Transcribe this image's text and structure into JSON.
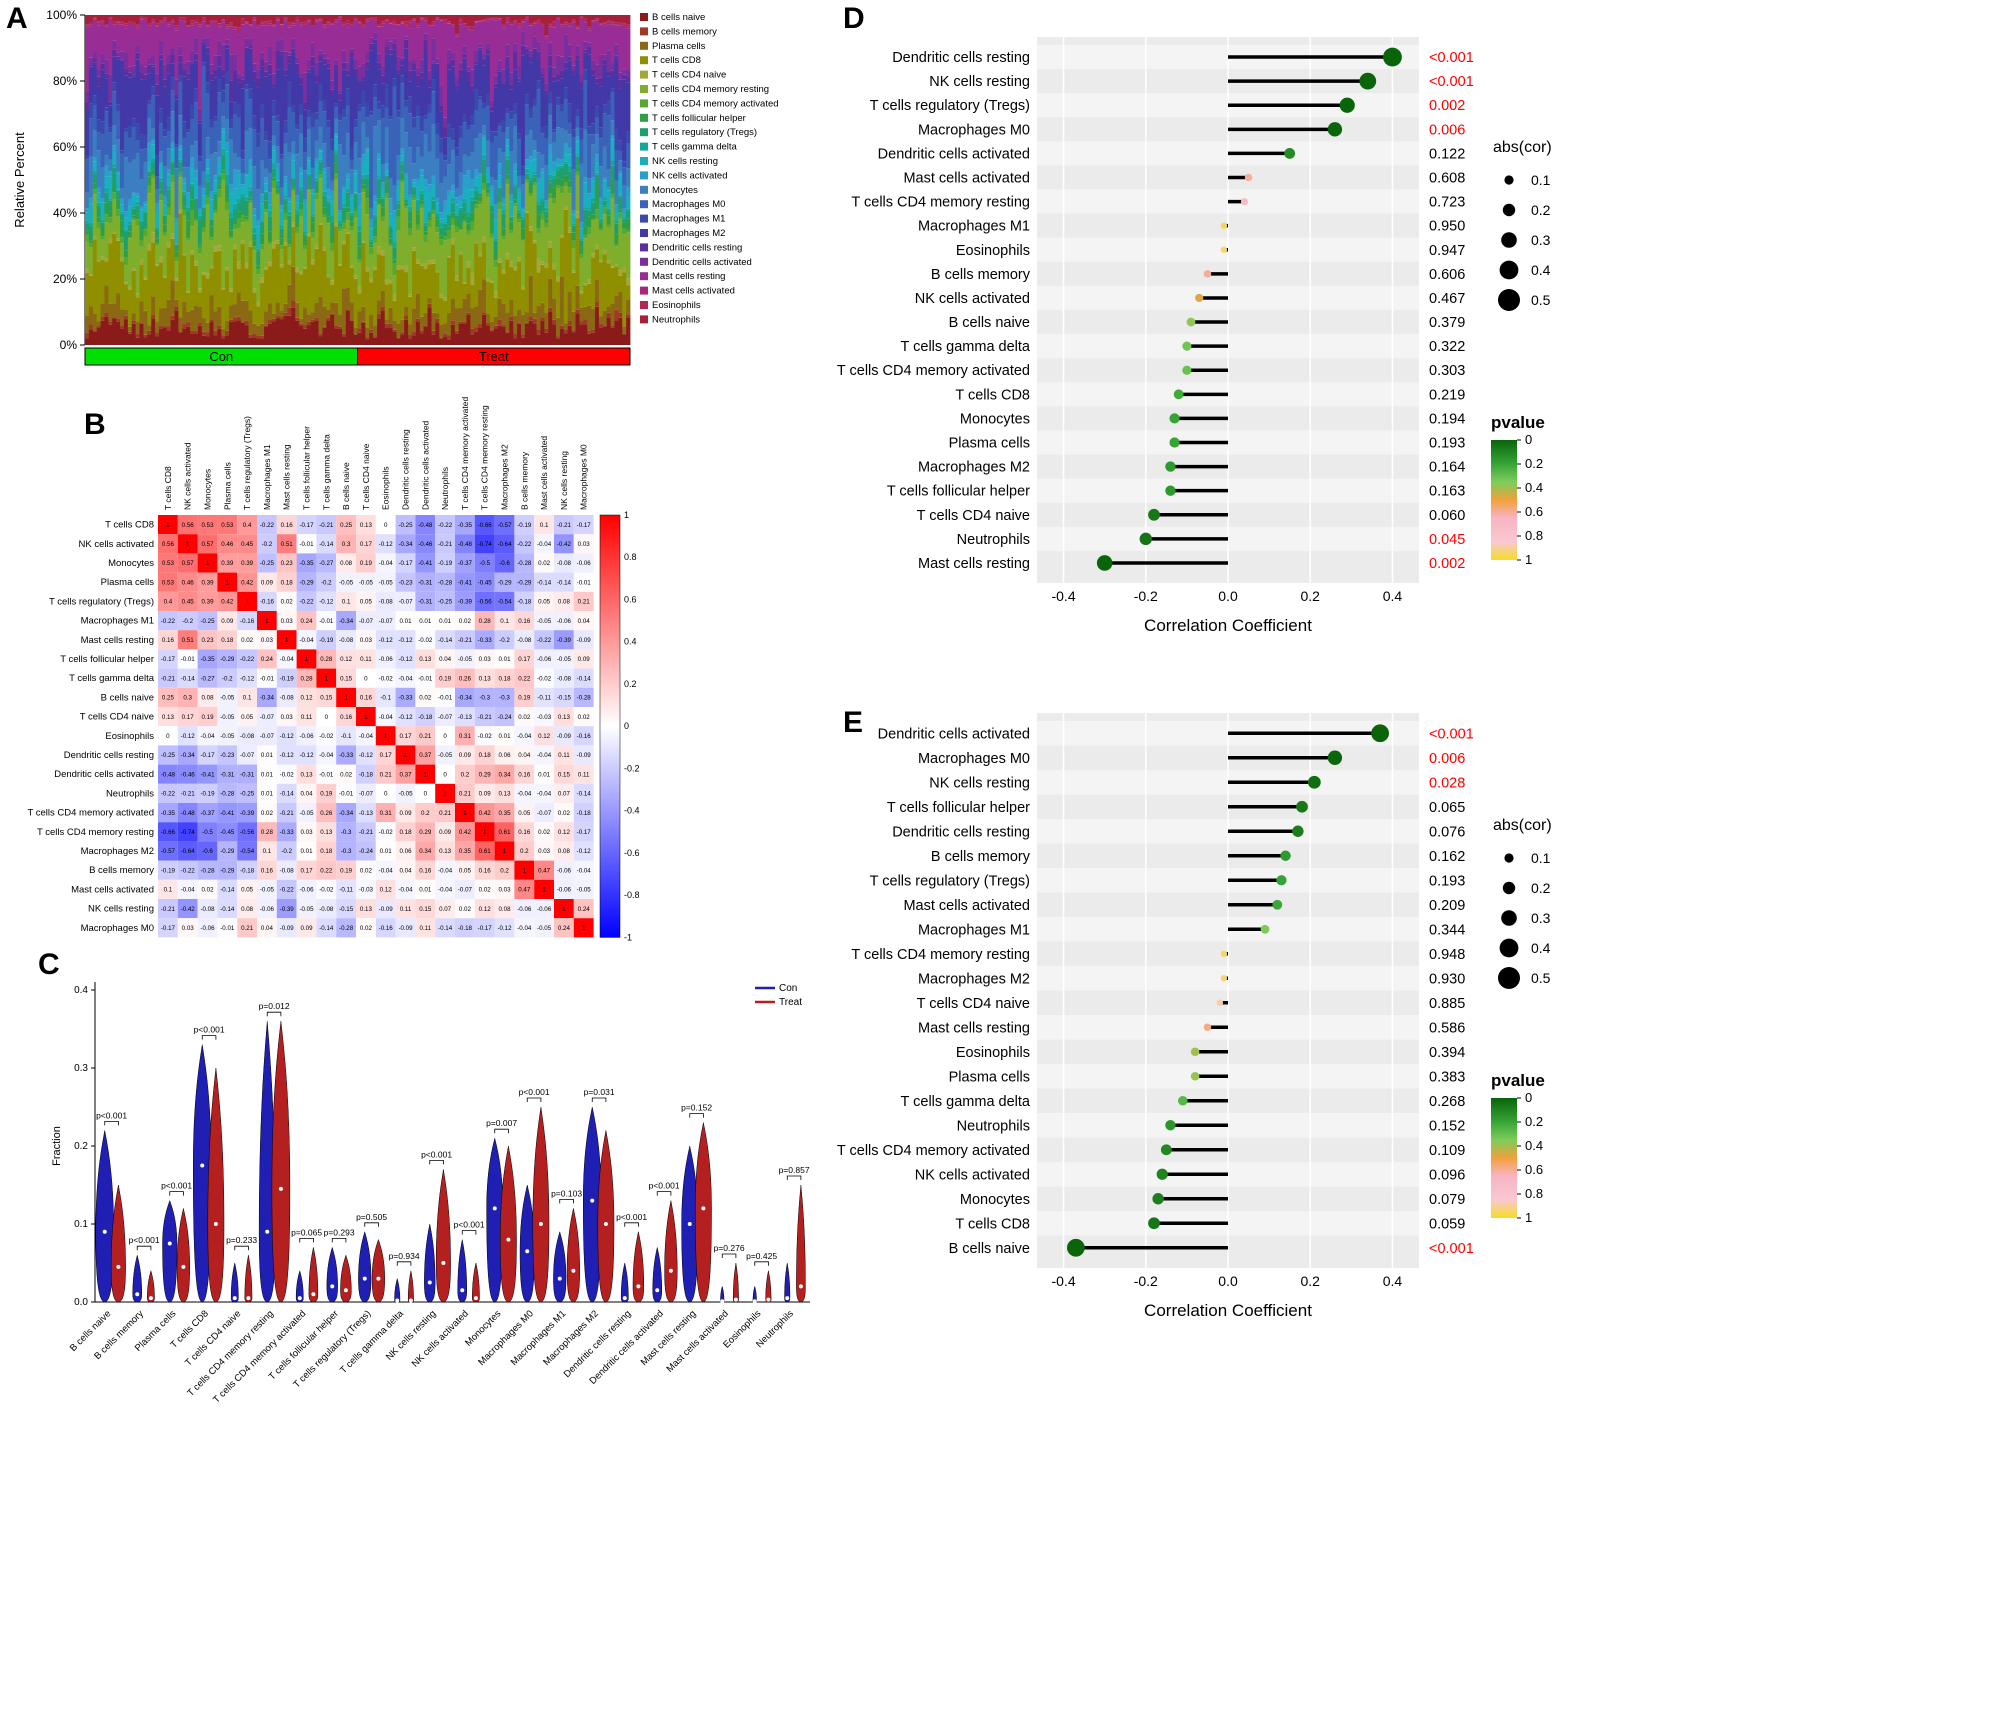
{
  "panel_labels": {
    "A": "A",
    "B": "B",
    "C": "C",
    "D": "D",
    "E": "E"
  },
  "cell_types": [
    "B cells naive",
    "B cells memory",
    "Plasma cells",
    "T cells CD8",
    "T cells CD4 naive",
    "T cells CD4 memory resting",
    "T cells CD4 memory activated",
    "T cells follicular helper",
    "T cells regulatory (Tregs)",
    "T cells gamma delta",
    "NK cells resting",
    "NK cells activated",
    "Monocytes",
    "Macrophages M0",
    "Macrophages M1",
    "Macrophages M2",
    "Dendritic cells resting",
    "Dendritic cells activated",
    "Mast cells resting",
    "Mast cells activated",
    "Eosinophils",
    "Neutrophils"
  ],
  "palette": [
    "#8B1A1A",
    "#9E3A26",
    "#8B6914",
    "#8F8F00",
    "#A2A838",
    "#7FAE2C",
    "#55A830",
    "#2F9E44",
    "#1F9E6E",
    "#13A89E",
    "#1AAFBF",
    "#2B9FCC",
    "#3C7FC0",
    "#3A62B8",
    "#3A49AE",
    "#4338A8",
    "#5B2F9E",
    "#7A2F9E",
    "#992D96",
    "#A8297A",
    "#B2265A",
    "#A6203C"
  ],
  "chart_data": [
    {
      "id": "A",
      "type": "bar",
      "subtype": "stacked-percent",
      "ylabel": "Relative Percent",
      "ylim": [
        0,
        100
      ],
      "yticks": [
        "0%",
        "20%",
        "40%",
        "60%",
        "80%",
        "100%"
      ],
      "groups": [
        {
          "label": "Con",
          "color": "#00E000",
          "n": 70
        },
        {
          "label": "Treat",
          "color": "#FF0000",
          "n": 70
        }
      ],
      "mean_fractions": [
        0.06,
        0.01,
        0.05,
        0.13,
        0.012,
        0.12,
        0.015,
        0.02,
        0.03,
        0.01,
        0.04,
        0.02,
        0.09,
        0.09,
        0.03,
        0.12,
        0.02,
        0.03,
        0.1,
        0.005,
        0.005,
        0.02
      ]
    },
    {
      "id": "B",
      "type": "heatmap",
      "order": [
        "T cells CD8",
        "NK cells activated",
        "Monocytes",
        "Plasma cells",
        "T cells regulatory (Tregs)",
        "Macrophages M1",
        "Mast cells resting",
        "T cells follicular helper",
        "T cells gamma delta",
        "B cells naive",
        "T cells CD4 naive",
        "Eosinophils",
        "Dendritic cells resting",
        "Dendritic cells activated",
        "Neutrophils",
        "T cells CD4 memory activated",
        "T cells CD4 memory resting",
        "Macrophages M2",
        "B cells memory",
        "Mast cells activated",
        "NK cells resting",
        "Macrophages M0"
      ],
      "colorbar_ticks": [
        "1",
        "0.8",
        "0.6",
        "0.4",
        "0.2",
        "0",
        "-0.2",
        "-0.4",
        "-0.6",
        "-0.8",
        "-1"
      ],
      "vlim": [
        -1,
        1
      ],
      "matrix_upper": [
        [
          1,
          0.56,
          0.53,
          0.53,
          0.4,
          -0.22,
          0.16,
          -0.17,
          -0.21,
          0.25,
          0.13,
          0,
          -0.25,
          -0.48,
          -0.22,
          -0.35,
          -0.66,
          -0.57,
          -0.19,
          0.1,
          -0.21,
          -0.17
        ],
        [
          1,
          0.57,
          0.46,
          0.45,
          -0.2,
          0.51,
          -0.01,
          -0.14,
          0.3,
          0.17,
          -0.12,
          -0.34,
          -0.46,
          -0.21,
          -0.48,
          -0.74,
          -0.64,
          -0.22,
          -0.04,
          -0.42,
          0.03
        ],
        [
          1,
          0.39,
          0.39,
          -0.25,
          0.23,
          -0.35,
          -0.27,
          0.08,
          0.19,
          -0.04,
          -0.17,
          -0.41,
          -0.19,
          -0.37,
          -0.5,
          -0.6,
          -0.28,
          0.02,
          -0.08,
          -0.06
        ],
        [
          1,
          0.42,
          0.09,
          0.18,
          -0.29,
          -0.2,
          -0.05,
          -0.05,
          -0.05,
          -0.23,
          -0.31,
          -0.28,
          -0.41,
          -0.45,
          -0.29,
          -0.29,
          -0.14,
          -0.14,
          -0.01
        ],
        [
          1,
          -0.16,
          0.02,
          -0.22,
          -0.12,
          0.1,
          0.05,
          -0.08,
          -0.07,
          -0.31,
          -0.25,
          -0.39,
          -0.56,
          -0.54,
          -0.18,
          0.05,
          0.08,
          0.21
        ],
        [
          1,
          0.03,
          0.24,
          -0.01,
          -0.34,
          -0.07,
          -0.07,
          0.01,
          0.01,
          0.01,
          0.02,
          0.28,
          0.1,
          0.16,
          -0.05,
          -0.06,
          0.04
        ],
        [
          1,
          -0.04,
          -0.19,
          -0.08,
          0.03,
          -0.12,
          -0.12,
          -0.02,
          -0.14,
          -0.21,
          -0.33,
          -0.2,
          -0.08,
          -0.22,
          -0.39,
          -0.09
        ],
        [
          1,
          0.28,
          0.12,
          0.11,
          -0.06,
          -0.12,
          0.13,
          0.04,
          -0.05,
          0.03,
          0.01,
          0.17,
          -0.06,
          -0.05,
          0.09
        ],
        [
          1,
          0.15,
          0,
          -0.02,
          -0.04,
          -0.01,
          0.19,
          0.26,
          0.13,
          0.18,
          0.22,
          -0.02,
          -0.08,
          -0.14
        ],
        [
          1,
          0.16,
          -0.1,
          -0.33,
          0.02,
          -0.01,
          -0.34,
          -0.3,
          -0.3,
          0.19,
          -0.11,
          -0.15,
          -0.28
        ],
        [
          1,
          -0.04,
          -0.12,
          -0.18,
          -0.07,
          -0.13,
          -0.21,
          -0.24,
          0.02,
          -0.03,
          0.13,
          0.02
        ],
        [
          1,
          0.17,
          0.21,
          0,
          0.31,
          -0.02,
          0.01,
          -0.04,
          0.12,
          -0.09,
          -0.16
        ],
        [
          1,
          0.37,
          -0.05,
          0.09,
          0.18,
          0.06,
          0.04,
          -0.04,
          0.11,
          -0.09
        ],
        [
          1,
          0,
          0.2,
          0.29,
          0.34,
          0.16,
          0.01,
          0.15,
          0.11
        ],
        [
          1,
          0.21,
          0.09,
          0.13,
          -0.04,
          -0.04,
          0.07,
          -0.14
        ],
        [
          1,
          0.42,
          0.35,
          0.05,
          -0.07,
          0.02,
          -0.18
        ],
        [
          1,
          0.61,
          0.16,
          0.02,
          0.12,
          -0.17
        ],
        [
          1,
          0.2,
          0.03,
          0.08,
          -0.12
        ],
        [
          1,
          0.47,
          -0.06,
          -0.04
        ],
        [
          1,
          -0.06,
          -0.05
        ],
        [
          1,
          0.24
        ],
        [
          1
        ]
      ]
    },
    {
      "id": "C",
      "type": "violin",
      "ylabel": "Fraction",
      "ylim": [
        0,
        0.4
      ],
      "yticks": [
        "0.0",
        "0.1",
        "0.2",
        "0.3",
        "0.4"
      ],
      "legend": [
        {
          "label": "Con",
          "color": "#1F1FB4"
        },
        {
          "label": "Treat",
          "color": "#B41F1F"
        }
      ],
      "categories": [
        "B cells naive",
        "B cells memory",
        "Plasma cells",
        "T cells CD8",
        "T cells CD4 naive",
        "T cells CD4 memory resting",
        "T cells CD4 memory activated",
        "T cells follicular helper",
        "T cells regulatory (Tregs)",
        "T cells gamma delta",
        "NK cells resting",
        "NK cells activated",
        "Monocytes",
        "Macrophages M0",
        "Macrophages M1",
        "Macrophages M2",
        "Dendritic cells resting",
        "Dendritic cells activated",
        "Mast cells resting",
        "Mast cells activated",
        "Eosinophils",
        "Neutrophils"
      ],
      "pvalues": [
        "p<0.001",
        "p<0.001",
        "p<0.001",
        "p<0.001",
        "p=0.233",
        "p=0.012",
        "p=0.065",
        "p=0.293",
        "p=0.505",
        "p=0.934",
        "p<0.001",
        "p<0.001",
        "p=0.007",
        "p<0.001",
        "p=0.103",
        "p=0.031",
        "p<0.001",
        "p<0.001",
        "p=0.152",
        "p=0.276",
        "p=0.425",
        "p=0.857"
      ],
      "violins": [
        {
          "con": [
            0.09,
            0.22,
            1.0
          ],
          "treat": [
            0.045,
            0.15,
            0.8
          ]
        },
        {
          "con": [
            0.01,
            0.06,
            0.5
          ],
          "treat": [
            0.005,
            0.04,
            0.4
          ]
        },
        {
          "con": [
            0.075,
            0.13,
            0.8
          ],
          "treat": [
            0.045,
            0.12,
            0.7
          ]
        },
        {
          "con": [
            0.175,
            0.33,
            1.0
          ],
          "treat": [
            0.1,
            0.3,
            0.9
          ]
        },
        {
          "con": [
            0.005,
            0.05,
            0.4
          ],
          "treat": [
            0.005,
            0.06,
            0.4
          ]
        },
        {
          "con": [
            0.09,
            0.36,
            0.9
          ],
          "treat": [
            0.145,
            0.36,
            1.0
          ]
        },
        {
          "con": [
            0.005,
            0.04,
            0.4
          ],
          "treat": [
            0.01,
            0.07,
            0.5
          ]
        },
        {
          "con": [
            0.02,
            0.07,
            0.6
          ],
          "treat": [
            0.015,
            0.06,
            0.6
          ]
        },
        {
          "con": [
            0.03,
            0.09,
            0.7
          ],
          "treat": [
            0.03,
            0.08,
            0.7
          ]
        },
        {
          "con": [
            0.002,
            0.03,
            0.3
          ],
          "treat": [
            0.002,
            0.04,
            0.3
          ]
        },
        {
          "con": [
            0.025,
            0.1,
            0.6
          ],
          "treat": [
            0.05,
            0.17,
            0.8
          ]
        },
        {
          "con": [
            0.015,
            0.08,
            0.5
          ],
          "treat": [
            0.005,
            0.05,
            0.4
          ]
        },
        {
          "con": [
            0.12,
            0.21,
            0.9
          ],
          "treat": [
            0.08,
            0.2,
            0.9
          ]
        },
        {
          "con": [
            0.065,
            0.15,
            0.8
          ],
          "treat": [
            0.1,
            0.25,
            0.9
          ]
        },
        {
          "con": [
            0.03,
            0.09,
            0.7
          ],
          "treat": [
            0.04,
            0.12,
            0.7
          ]
        },
        {
          "con": [
            0.13,
            0.25,
            1.0
          ],
          "treat": [
            0.1,
            0.22,
            0.9
          ]
        },
        {
          "con": [
            0.005,
            0.05,
            0.4
          ],
          "treat": [
            0.02,
            0.09,
            0.6
          ]
        },
        {
          "con": [
            0.015,
            0.07,
            0.5
          ],
          "treat": [
            0.04,
            0.13,
            0.7
          ]
        },
        {
          "con": [
            0.1,
            0.2,
            0.9
          ],
          "treat": [
            0.12,
            0.23,
            0.9
          ]
        },
        {
          "con": [
            0.001,
            0.02,
            0.2
          ],
          "treat": [
            0.003,
            0.05,
            0.3
          ]
        },
        {
          "con": [
            0.001,
            0.02,
            0.2
          ],
          "treat": [
            0.003,
            0.04,
            0.3
          ]
        },
        {
          "con": [
            0.005,
            0.05,
            0.3
          ],
          "treat": [
            0.02,
            0.15,
            0.5
          ]
        }
      ]
    },
    {
      "id": "D",
      "type": "lollipop",
      "xlabel": "Correlation Coefficient",
      "xlim": [
        -0.45,
        0.45
      ],
      "xticks": [
        "-0.4",
        "-0.2",
        "0.0",
        "0.2",
        "0.4"
      ],
      "labels": [
        "Dendritic cells resting",
        "NK cells resting",
        "T cells regulatory (Tregs)",
        "Macrophages M0",
        "Dendritic cells activated",
        "Mast cells activated",
        "T cells CD4 memory resting",
        "Macrophages M1",
        "Eosinophils",
        "B cells memory",
        "NK cells activated",
        "B cells naive",
        "T cells gamma delta",
        "T cells CD4 memory activated",
        "T cells CD8",
        "Monocytes",
        "Plasma cells",
        "Macrophages M2",
        "T cells follicular helper",
        "T cells CD4 naive",
        "Neutrophils",
        "Mast cells resting"
      ],
      "cor": [
        0.4,
        0.34,
        0.29,
        0.26,
        0.15,
        0.05,
        0.04,
        -0.01,
        -0.01,
        -0.05,
        -0.07,
        -0.09,
        -0.1,
        -0.1,
        -0.12,
        -0.13,
        -0.13,
        -0.14,
        -0.14,
        -0.18,
        -0.2,
        -0.3
      ],
      "p": [
        0.0005,
        0.0005,
        0.002,
        0.006,
        0.122,
        0.608,
        0.723,
        0.95,
        0.947,
        0.606,
        0.467,
        0.379,
        0.322,
        0.303,
        0.219,
        0.194,
        0.193,
        0.164,
        0.163,
        0.06,
        0.045,
        0.002
      ],
      "p_labels": [
        "<0.001",
        "<0.001",
        "0.002",
        "0.006",
        "0.122",
        "0.608",
        "0.723",
        "0.950",
        "0.947",
        "0.606",
        "0.467",
        "0.379",
        "0.322",
        "0.303",
        "0.219",
        "0.194",
        "0.193",
        "0.164",
        "0.163",
        "0.060",
        "0.045",
        "0.002"
      ],
      "sig": [
        1,
        1,
        1,
        1,
        0,
        0,
        0,
        0,
        0,
        0,
        0,
        0,
        0,
        0,
        0,
        0,
        0,
        0,
        0,
        0,
        1,
        1
      ],
      "legend_size": {
        "title": "abs(cor)",
        "values": [
          0.1,
          0.2,
          0.3,
          0.4,
          0.5
        ]
      },
      "legend_color": {
        "title": "pvalue",
        "ticks": [
          "0",
          "0.2",
          "0.4",
          "0.6",
          "0.8",
          "1"
        ]
      }
    },
    {
      "id": "E",
      "type": "lollipop",
      "xlabel": "Correlation Coefficient",
      "xlim": [
        -0.45,
        0.45
      ],
      "xticks": [
        "-0.4",
        "-0.2",
        "0.0",
        "0.2",
        "0.4"
      ],
      "labels": [
        "Dendritic cells activated",
        "Macrophages M0",
        "NK cells resting",
        "T cells follicular helper",
        "Dendritic cells resting",
        "B cells memory",
        "T cells regulatory (Tregs)",
        "Mast cells activated",
        "Macrophages M1",
        "T cells CD4 memory resting",
        "Macrophages M2",
        "T cells CD4 naive",
        "Mast cells resting",
        "Eosinophils",
        "Plasma cells",
        "T cells gamma delta",
        "Neutrophils",
        "T cells CD4 memory activated",
        "NK cells activated",
        "Monocytes",
        "T cells CD8",
        "B cells naive"
      ],
      "cor": [
        0.37,
        0.26,
        0.21,
        0.18,
        0.17,
        0.14,
        0.13,
        0.12,
        0.09,
        -0.01,
        -0.01,
        -0.02,
        -0.05,
        -0.08,
        -0.08,
        -0.11,
        -0.14,
        -0.15,
        -0.16,
        -0.17,
        -0.18,
        -0.37
      ],
      "p": [
        0.0005,
        0.006,
        0.028,
        0.065,
        0.076,
        0.162,
        0.193,
        0.209,
        0.344,
        0.948,
        0.93,
        0.885,
        0.586,
        0.394,
        0.383,
        0.268,
        0.152,
        0.109,
        0.096,
        0.079,
        0.059,
        0.0005
      ],
      "p_labels": [
        "<0.001",
        "0.006",
        "0.028",
        "0.065",
        "0.076",
        "0.162",
        "0.193",
        "0.209",
        "0.344",
        "0.948",
        "0.930",
        "0.885",
        "0.586",
        "0.394",
        "0.383",
        "0.268",
        "0.152",
        "0.109",
        "0.096",
        "0.079",
        "0.059",
        "<0.001"
      ],
      "sig": [
        1,
        1,
        1,
        0,
        0,
        0,
        0,
        0,
        0,
        0,
        0,
        0,
        0,
        0,
        0,
        0,
        0,
        0,
        0,
        0,
        0,
        1
      ],
      "legend_size": {
        "title": "abs(cor)",
        "values": [
          0.1,
          0.2,
          0.3,
          0.4,
          0.5
        ]
      },
      "legend_color": {
        "title": "pvalue",
        "ticks": [
          "0",
          "0.2",
          "0.4",
          "0.6",
          "0.8",
          "1"
        ]
      }
    }
  ]
}
